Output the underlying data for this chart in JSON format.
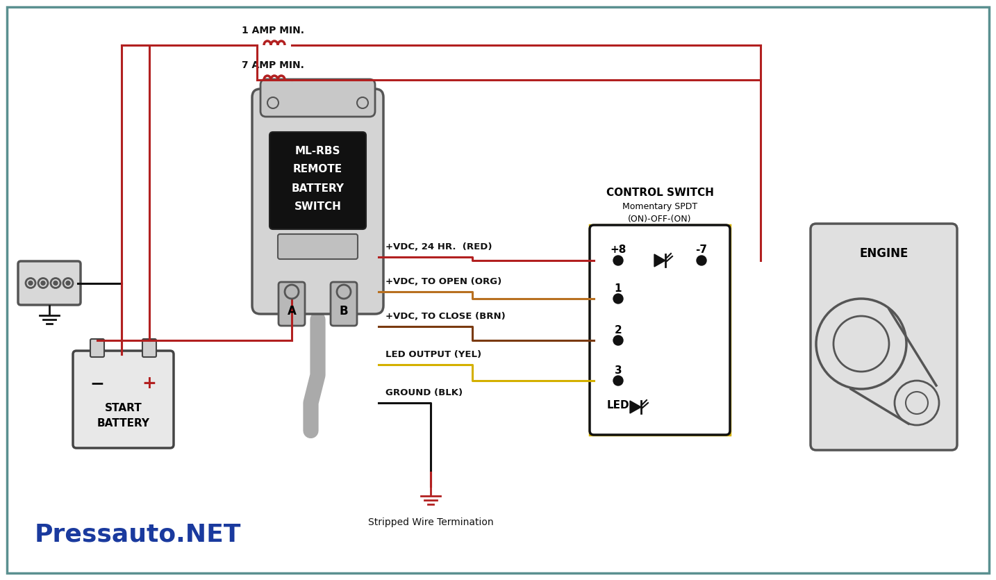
{
  "bg_color": "#ffffff",
  "border_color": "#5a9090",
  "watermark": "Pressauto.NET",
  "watermark_color": "#1a3a9e",
  "bottom_text": "Stripped Wire Termination",
  "wire_labels": [
    "+VDC, 24 HR.  (RED)",
    "+VDC, TO OPEN (ORG)",
    "+VDC, TO CLOSE (BRN)",
    "LED OUTPUT (YEL)",
    "GROUND (BLK)"
  ],
  "switch_title": "CONTROL SWITCH",
  "switch_sub1": "Momentary SPDT",
  "switch_sub2": "(ON)-OFF-(ON)",
  "mlrbs_lines": [
    "ML-RBS",
    "REMOTE",
    "BATTERY",
    "SWITCH"
  ],
  "terminal_a": "A",
  "terminal_b": "B",
  "engine_label": "ENGINE",
  "battery_label1": "START",
  "battery_label2": "BATTERY",
  "fuse1_label": "1 AMP MIN.",
  "fuse2_label": "7 AMP MIN.",
  "pin_led": "LED",
  "red": "#b22020",
  "orange": "#b87020",
  "brown": "#7a3a10",
  "yellow": "#d4b000",
  "black": "#111111",
  "gray": "#aaaaaa",
  "dark_gray": "#555555"
}
